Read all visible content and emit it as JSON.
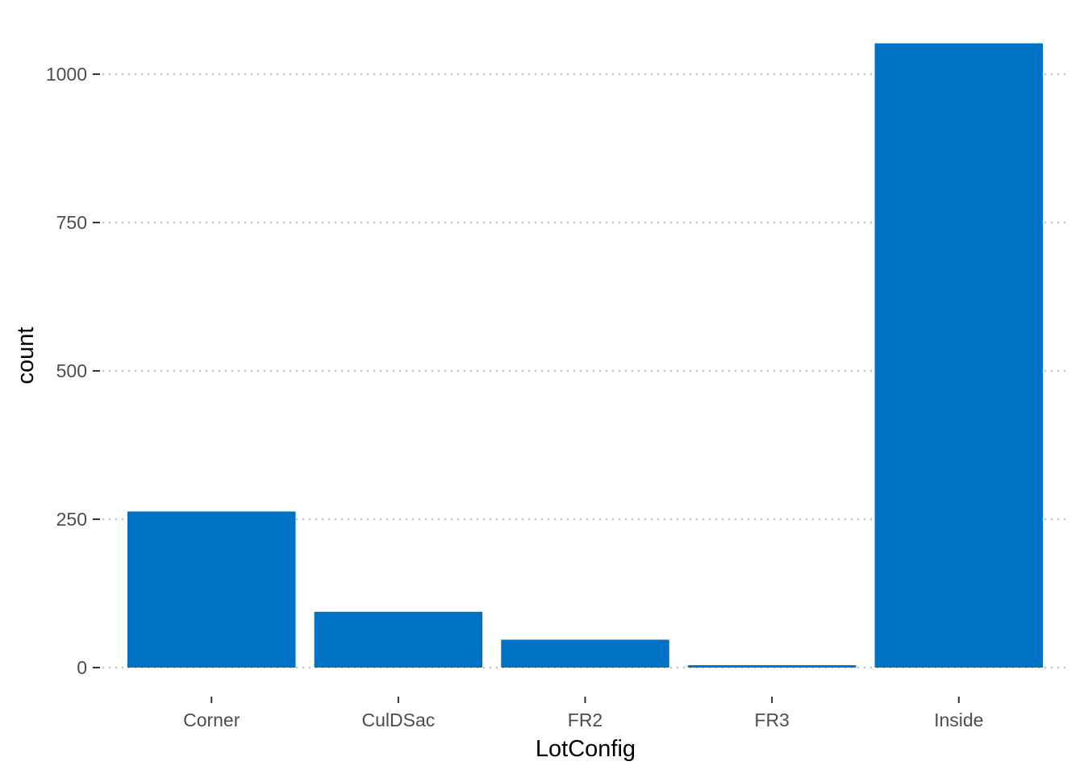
{
  "chart_data": {
    "type": "bar",
    "title": "",
    "xlabel": "LotConfig",
    "ylabel": "count",
    "categories": [
      "Corner",
      "CulDSac",
      "FR2",
      "FR3",
      "Inside"
    ],
    "values": [
      263,
      94,
      47,
      4,
      1052
    ],
    "ylim": [
      0,
      1100
    ],
    "yticks": [
      0,
      250,
      500,
      750,
      1000
    ],
    "grid": "horizontal-dotted",
    "legend": "none",
    "bar_color": "#0072c6",
    "grid_color": "#bebebe"
  }
}
